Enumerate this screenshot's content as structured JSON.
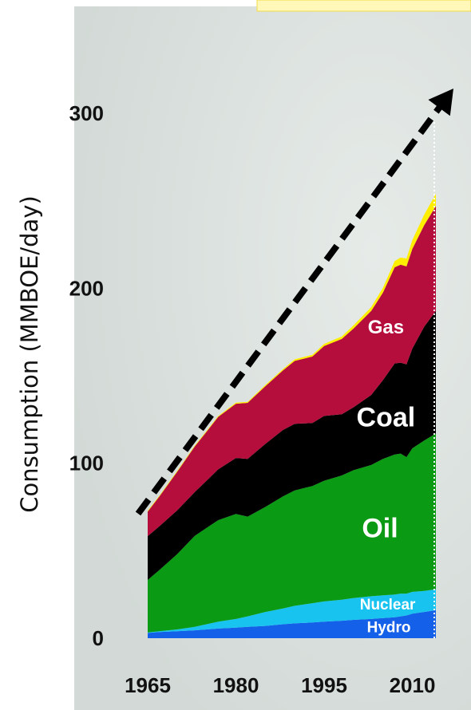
{
  "chart_data": {
    "type": "area",
    "stacked": true,
    "title": "",
    "xlabel": "",
    "ylabel": "Consumption (MMBOE/day)",
    "xlim": [
      1965,
      2014
    ],
    "ylim": [
      0,
      300
    ],
    "x_ticks": [
      "1965",
      "1980",
      "1995",
      "2010"
    ],
    "y_ticks": [
      "0",
      "100",
      "200",
      "300"
    ],
    "grid": false,
    "x": [
      1965,
      1967,
      1970,
      1973,
      1975,
      1977,
      1980,
      1982,
      1985,
      1988,
      1990,
      1993,
      1995,
      1998,
      2000,
      2003,
      2005,
      2007,
      2008,
      2009,
      2010,
      2012,
      2014
    ],
    "series": [
      {
        "name": "Hydro",
        "color": "#1560e8",
        "values": [
          3,
          3.5,
          4,
          4.5,
          5,
          5.5,
          6,
          6.5,
          7,
          8,
          8.5,
          9,
          9.5,
          10,
          10.5,
          11,
          11.5,
          12,
          12.5,
          13,
          14,
          15,
          16
        ]
      },
      {
        "name": "Nuclear",
        "color": "#19c3f0",
        "values": [
          0.3,
          0.5,
          1,
          2,
          3,
          4,
          5,
          6,
          8,
          9,
          10,
          11,
          11.5,
          12,
          12.5,
          13,
          13,
          13,
          13,
          12.5,
          12.5,
          12,
          12
        ]
      },
      {
        "name": "Oil",
        "color": "#0a9a13",
        "values": [
          30,
          35,
          43,
          52,
          55,
          58,
          60,
          57,
          60,
          64,
          66,
          67,
          69,
          71,
          73,
          75,
          78,
          80,
          80,
          78,
          82,
          86,
          89
        ]
      },
      {
        "name": "Coal",
        "color": "#000000",
        "values": [
          25,
          25,
          25,
          25,
          27,
          29,
          32,
          33,
          36,
          38,
          38,
          36,
          37,
          35,
          36,
          40,
          45,
          52,
          52,
          53,
          57,
          65,
          70
        ]
      },
      {
        "name": "Gas",
        "color": "#b50e3c",
        "values": [
          14,
          17,
          22,
          26,
          28,
          30,
          31,
          32,
          33,
          34,
          36,
          38,
          40,
          43,
          45,
          48,
          50,
          55,
          56,
          56,
          57,
          58,
          60
        ]
      },
      {
        "name": "",
        "color": "#ffee00",
        "values": [
          0.5,
          0.5,
          0.5,
          0.5,
          0.5,
          0.5,
          0.6,
          0.6,
          0.7,
          0.8,
          0.9,
          1,
          1.2,
          1.5,
          1.8,
          2.2,
          2.8,
          3.5,
          4,
          4.5,
          5,
          6,
          7
        ]
      }
    ],
    "labels": [
      {
        "text": "Gas",
        "series": "Gas"
      },
      {
        "text": "Coal",
        "series": "Coal"
      },
      {
        "text": "Oil",
        "series": "Oil"
      },
      {
        "text": "Nuclear",
        "series": "Nuclear"
      },
      {
        "text": "Hydro",
        "series": "Hydro"
      }
    ],
    "trend_line": {
      "from": [
        1965,
        73
      ],
      "to": [
        2014,
        305
      ],
      "style": "dashed",
      "color": "#000000"
    }
  }
}
